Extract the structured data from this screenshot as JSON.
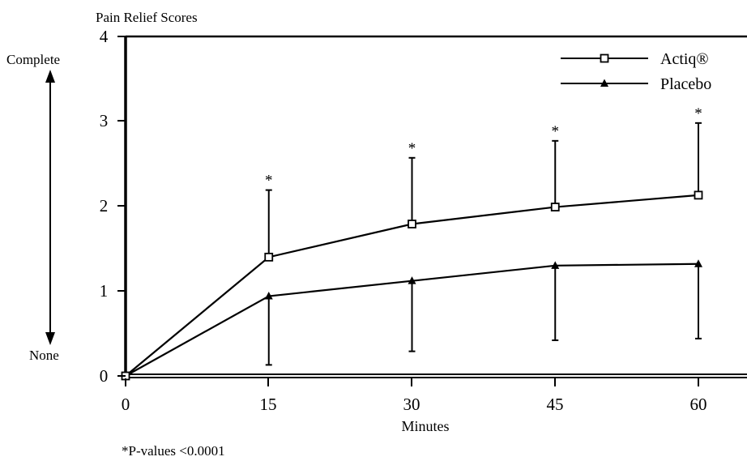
{
  "chart_data": {
    "type": "line",
    "title": "Pain Relief Scores",
    "xlabel": "Minutes",
    "ylabel": "",
    "x": [
      0,
      15,
      30,
      45,
      60
    ],
    "xlim": [
      0,
      65
    ],
    "ylim": [
      0,
      4
    ],
    "xticks": [
      "0",
      "15",
      "30",
      "45",
      "60"
    ],
    "yticks": [
      "0",
      "1",
      "2",
      "3",
      "4"
    ],
    "grid": false,
    "legend_position": "top-right",
    "scale_top_label": "Complete",
    "scale_bottom_label": "None",
    "footnote": "*P-values <0.0001",
    "series": [
      {
        "name": "Actiq®",
        "marker": "open-square",
        "values": [
          0,
          1.4,
          1.79,
          1.99,
          2.13
        ],
        "error_upper": [
          0,
          2.19,
          2.57,
          2.77,
          2.98
        ],
        "significance": [
          "",
          "*",
          "*",
          "*",
          "*"
        ]
      },
      {
        "name": "Placebo",
        "marker": "filled-triangle",
        "values": [
          0,
          0.94,
          1.12,
          1.3,
          1.32
        ],
        "error_lower": [
          0,
          0.13,
          0.29,
          0.42,
          0.44
        ]
      }
    ],
    "colors": {
      "line": "#000000",
      "background": "#ffffff"
    }
  }
}
